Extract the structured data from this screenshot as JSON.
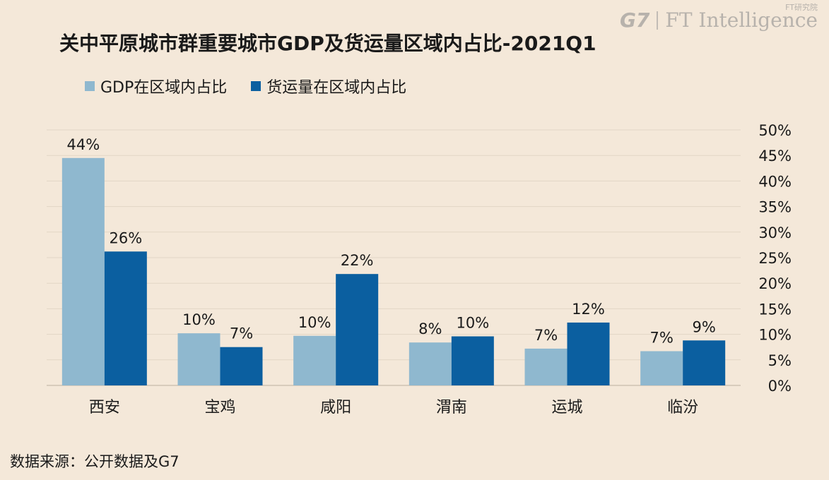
{
  "title": "关中平原城市群重要城市GDP及货运量区域内占比-2021Q1",
  "logo": {
    "g7": "G7",
    "fti": "FT Intelligence",
    "fti_sup": "FT研究院"
  },
  "source": "数据来源：公开数据及G7",
  "colors": {
    "gdp": "#8fb8cf",
    "freight": "#0b5fa0",
    "grid": "#e2d6c6",
    "axis": "#cfc2b2"
  },
  "chart_data": {
    "type": "bar",
    "categories": [
      "西安",
      "宝鸡",
      "咸阳",
      "渭南",
      "运城",
      "临汾"
    ],
    "series": [
      {
        "name": "GDP在区域内占比",
        "values": [
          44.5,
          10.2,
          9.7,
          8.4,
          7.2,
          6.7
        ],
        "labels": [
          "44%",
          "10%",
          "10%",
          "8%",
          "7%",
          "7%"
        ]
      },
      {
        "name": "货运量在区域内占比",
        "values": [
          26.2,
          7.5,
          21.8,
          9.6,
          12.3,
          8.8
        ],
        "labels": [
          "26%",
          "7%",
          "22%",
          "10%",
          "12%",
          "9%"
        ]
      }
    ],
    "ylim": [
      0,
      50
    ],
    "yticks": [
      "0%",
      "5%",
      "10%",
      "15%",
      "20%",
      "25%",
      "30%",
      "35%",
      "40%",
      "45%",
      "50%"
    ],
    "y_axis_position": "right",
    "grid": true,
    "legend": "top-left"
  }
}
